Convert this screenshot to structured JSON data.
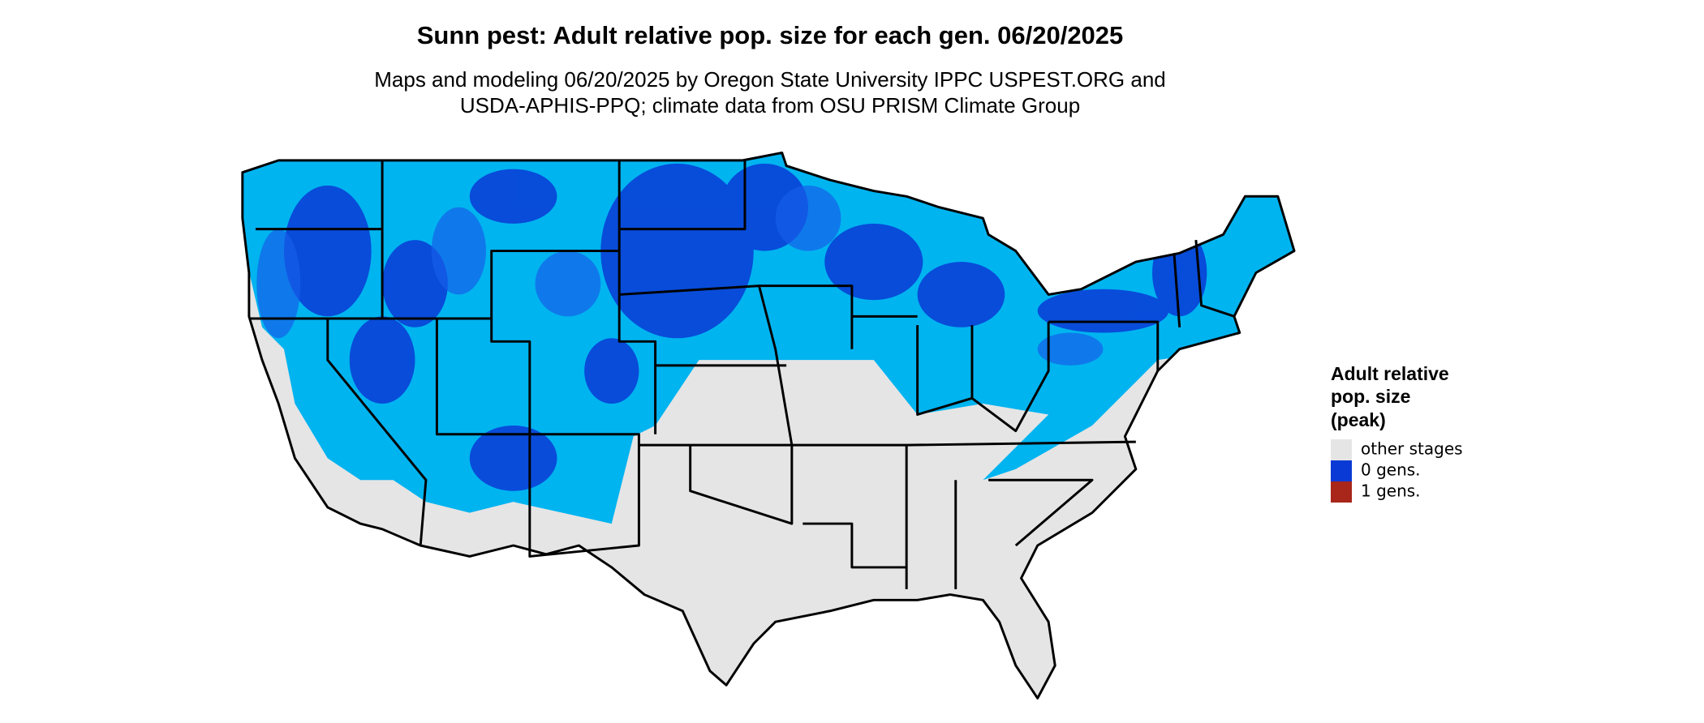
{
  "header": {
    "title": "Sunn pest: Adult relative pop. size for each gen. 06/20/2025",
    "subtitle_lines": [
      "Maps and modeling 06/20/2025 by Oregon State University IPPC USPEST.ORG and",
      "USDA-APHIS-PPQ; climate data from OSU PRISM Climate Group"
    ]
  },
  "legend": {
    "title_lines": [
      "Adult relative",
      "pop. size",
      "(peak)"
    ],
    "items": [
      {
        "label": "other stages",
        "color": "#e5e5e5"
      },
      {
        "label": "0 gens.",
        "color": "#0a3ad6"
      },
      {
        "label": "1 gens.",
        "color": "#a8261a"
      }
    ]
  }
}
